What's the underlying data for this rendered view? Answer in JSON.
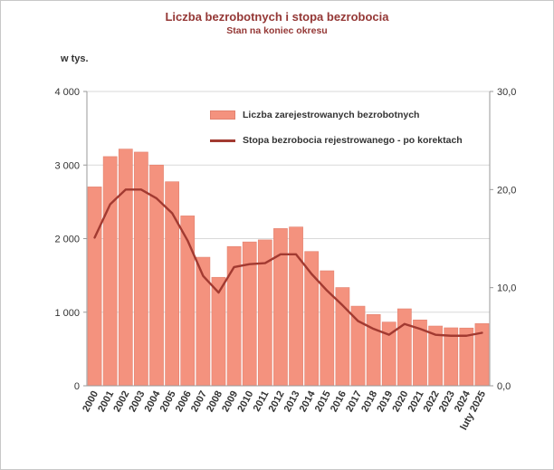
{
  "chart": {
    "title": "Liczba bezrobotnych i stopa bezrobocia",
    "subtitle": "Stan na koniec okresu",
    "left_axis_unit": "w tys.",
    "legend": [
      {
        "label": "Liczba zarejestrowanych bezrobotnych",
        "type": "bar"
      },
      {
        "label": "Stopa bezrobocia rejestrowanego - po korektach",
        "type": "line"
      }
    ]
  },
  "colors": {
    "bar_fill": "#f4927e",
    "bar_border": "#e28270",
    "line": "#a23a31",
    "title": "#943735",
    "axis_text": "#333333",
    "grid": "#d9d9d9",
    "axis_line": "#9a9a9a",
    "frame": "#c8c8c8"
  },
  "chart_data": {
    "type": "bar+line combo",
    "title": "Liczba bezrobotnych i stopa bezrobocia",
    "subtitle": "Stan na koniec okresu",
    "grid": true,
    "legend_position": "top-inside",
    "categories": [
      "2000",
      "2001",
      "2002",
      "2003",
      "2004",
      "2005",
      "2006",
      "2007",
      "2008",
      "2009",
      "2010",
      "2011",
      "2012",
      "2013",
      "2014",
      "2015",
      "2016",
      "2017",
      "2018",
      "2019",
      "2020",
      "2021",
      "2022",
      "2023",
      "2024",
      "luty 2025"
    ],
    "series": [
      {
        "name": "Liczba zarejestrowanych bezrobotnych",
        "type": "bar",
        "axis": "left",
        "unit": "tys.",
        "values": [
          2703,
          3115,
          3217,
          3176,
          3000,
          2773,
          2309,
          1747,
          1474,
          1893,
          1955,
          1983,
          2137,
          2158,
          1825,
          1563,
          1335,
          1082,
          969,
          866,
          1046,
          895,
          812,
          788,
          785,
          845
        ]
      },
      {
        "name": "Stopa bezrobocia rejestrowanego - po korektach",
        "type": "line",
        "axis": "right",
        "unit": "%",
        "values": [
          15.1,
          18.5,
          20.0,
          20.0,
          19.1,
          17.6,
          14.8,
          11.2,
          9.5,
          12.1,
          12.4,
          12.5,
          13.4,
          13.4,
          11.4,
          9.7,
          8.2,
          6.6,
          5.8,
          5.2,
          6.3,
          5.8,
          5.2,
          5.1,
          5.1,
          5.4
        ]
      }
    ],
    "left_axis": {
      "label": "w tys.",
      "range": [
        0,
        4000
      ],
      "ticks": [
        {
          "label": "4 000",
          "value": 4000
        },
        {
          "label": "3 000",
          "value": 3000
        },
        {
          "label": "2 000",
          "value": 2000
        },
        {
          "label": "1 000",
          "value": 1000
        },
        {
          "label": "0",
          "value": 0
        }
      ]
    },
    "right_axis": {
      "range": [
        0,
        30
      ],
      "ticks": [
        {
          "label": "30,0",
          "value": 30
        },
        {
          "label": "20,0",
          "value": 20
        },
        {
          "label": "10,0",
          "value": 10
        },
        {
          "label": "0,0",
          "value": 0
        }
      ]
    }
  }
}
